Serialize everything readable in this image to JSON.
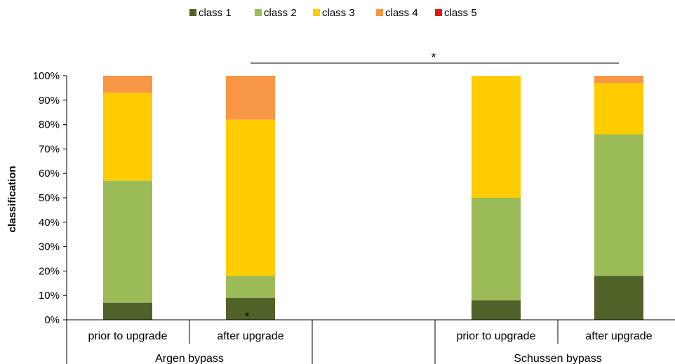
{
  "chart_data": {
    "type": "bar",
    "stacked": true,
    "title": "",
    "xlabel": "",
    "ylabel": "classification",
    "ylim": [
      0,
      100
    ],
    "y_ticks": [
      "0%",
      "10%",
      "20%",
      "30%",
      "40%",
      "50%",
      "60%",
      "70%",
      "80%",
      "90%",
      "100%"
    ],
    "legend_position": "top",
    "grid": false,
    "groups": [
      {
        "label": "Argen bypass",
        "categories": [
          "prior to upgrade",
          "after upgrade"
        ]
      },
      {
        "label": "",
        "categories": []
      },
      {
        "label": "Schussen bypass",
        "categories": [
          "prior to upgrade",
          "after upgrade"
        ]
      }
    ],
    "categories": [
      "prior to upgrade",
      "after upgrade",
      "prior to upgrade",
      "after upgrade"
    ],
    "series": [
      {
        "name": "class 1",
        "color": "#4f6228",
        "values": [
          7,
          9,
          8,
          18
        ]
      },
      {
        "name": "class 2",
        "color": "#9bbb59",
        "values": [
          50,
          9,
          42,
          58
        ]
      },
      {
        "name": "class 3",
        "color": "#ffcc00",
        "values": [
          36,
          64,
          50,
          21
        ]
      },
      {
        "name": "class 4",
        "color": "#f79646",
        "values": [
          7,
          18,
          0,
          3
        ]
      },
      {
        "name": "class 5",
        "color": "#e31a1c",
        "values": [
          0,
          0,
          0,
          0
        ]
      }
    ],
    "annotations": [
      {
        "text": "*",
        "type": "bracket",
        "from_category": 1,
        "to_category": 3
      },
      {
        "text": "*",
        "type": "segment",
        "category": 1,
        "series": "class 1"
      }
    ]
  }
}
